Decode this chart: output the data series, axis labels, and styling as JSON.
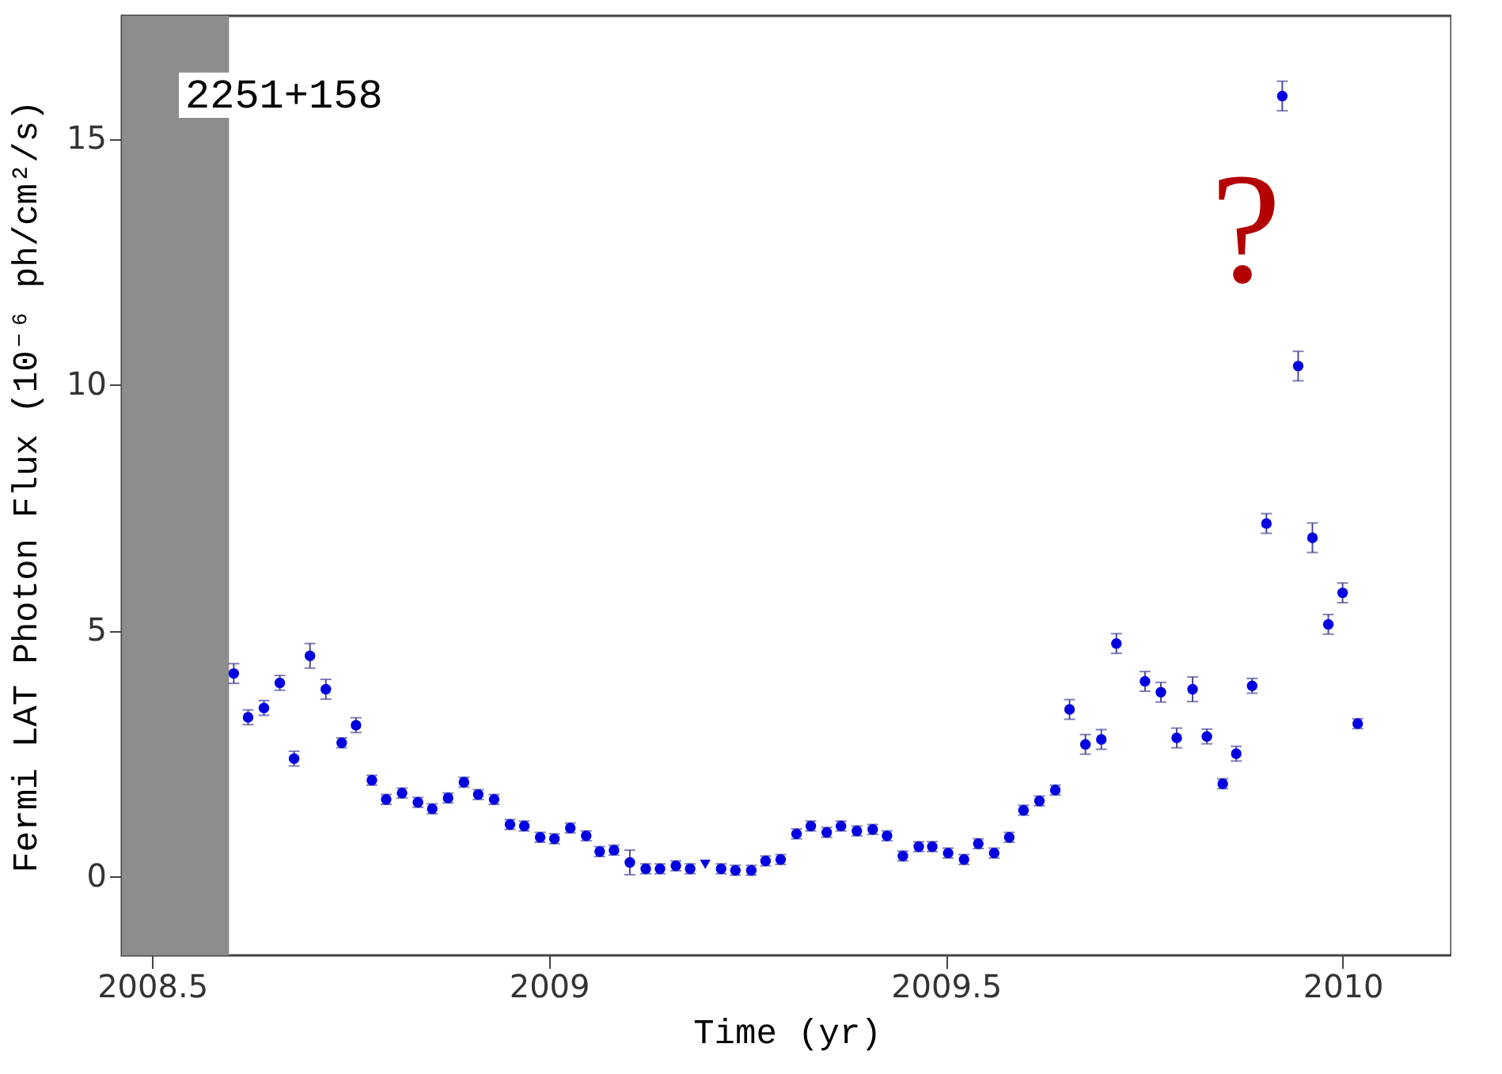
{
  "chart_data": {
    "type": "scatter",
    "xlabel": "Time (yr)",
    "ylabel": "Fermi LAT Photon Flux (10⁻⁶ ph/cm²/s)",
    "annotations": [
      "2251+158",
      "?"
    ],
    "xlim": [
      2008.462,
      2010.137
    ],
    "ylim": [
      -1.6,
      17.5
    ],
    "xticks": [
      2008.5,
      2009,
      2009.5,
      2010
    ],
    "yticks": [
      0,
      5,
      10,
      15
    ],
    "grid": false,
    "marker": "circle",
    "bands": [
      {
        "axis": "x",
        "from": 2008.462,
        "to": 2008.597,
        "color": "#8c8c8c"
      }
    ],
    "series": [
      {
        "color": "#0000e0",
        "x": [
          2008.603,
          2008.621,
          2008.641,
          2008.661,
          2008.679,
          2008.699,
          2008.719,
          2008.739,
          2008.757,
          2008.777,
          2008.795,
          2008.815,
          2008.835,
          2008.853,
          2008.873,
          2008.893,
          2008.911,
          2008.931,
          2008.951,
          2008.969,
          2008.989,
          2009.007,
          2009.027,
          2009.047,
          2009.064,
          2009.082,
          2009.102,
          2009.122,
          2009.14,
          2009.16,
          2009.178,
          2009.217,
          2009.235,
          2009.255,
          2009.273,
          2009.292,
          2009.312,
          2009.33,
          2009.35,
          2009.368,
          2009.388,
          2009.408,
          2009.426,
          2009.446,
          2009.466,
          2009.483,
          2009.503,
          2009.523,
          2009.541,
          2009.561,
          2009.58,
          2009.598,
          2009.618,
          2009.638,
          2009.656,
          2009.676,
          2009.696,
          2009.715,
          2009.751,
          2009.771,
          2009.791,
          2009.811,
          2009.829,
          2009.849,
          2009.866,
          2009.886,
          2009.904,
          2009.924,
          2009.944,
          2009.962,
          2009.982,
          2010.0,
          2010.019
        ],
        "values": [
          4.13,
          3.24,
          3.43,
          3.94,
          2.4,
          4.49,
          3.81,
          2.72,
          3.08,
          1.96,
          1.57,
          1.7,
          1.51,
          1.38,
          1.6,
          1.92,
          1.67,
          1.57,
          1.06,
          1.03,
          0.8,
          0.77,
          0.99,
          0.83,
          0.51,
          0.54,
          0.29,
          0.16,
          0.16,
          0.22,
          0.16,
          0.16,
          0.13,
          0.13,
          0.32,
          0.35,
          0.87,
          1.03,
          0.9,
          1.03,
          0.93,
          0.96,
          0.83,
          0.42,
          0.61,
          0.61,
          0.48,
          0.35,
          0.67,
          0.48,
          0.8,
          1.35,
          1.54,
          1.76,
          3.4,
          2.69,
          2.79,
          4.74,
          3.97,
          3.75,
          2.82,
          3.81,
          2.85,
          1.89,
          2.5,
          3.88,
          7.18,
          15.87,
          10.38,
          6.89,
          5.13,
          5.77,
          3.11
        ],
        "errors": [
          0.2,
          0.15,
          0.15,
          0.15,
          0.15,
          0.25,
          0.2,
          0.1,
          0.15,
          0.1,
          0.1,
          0.1,
          0.1,
          0.1,
          0.1,
          0.1,
          0.1,
          0.1,
          0.1,
          0.1,
          0.1,
          0.1,
          0.1,
          0.1,
          0.1,
          0.1,
          0.25,
          0.1,
          0.1,
          0.1,
          0.1,
          0.1,
          0.1,
          0.1,
          0.1,
          0.1,
          0.1,
          0.1,
          0.1,
          0.1,
          0.1,
          0.1,
          0.1,
          0.1,
          0.1,
          0.1,
          0.1,
          0.1,
          0.1,
          0.1,
          0.1,
          0.1,
          0.1,
          0.1,
          0.2,
          0.2,
          0.2,
          0.2,
          0.2,
          0.2,
          0.2,
          0.25,
          0.15,
          0.1,
          0.15,
          0.15,
          0.2,
          0.3,
          0.3,
          0.3,
          0.2,
          0.2,
          0.1
        ]
      },
      {
        "color": "#0000e0",
        "marker": "triangle",
        "x": [
          2009.197
        ],
        "values": [
          0.25
        ]
      }
    ]
  }
}
